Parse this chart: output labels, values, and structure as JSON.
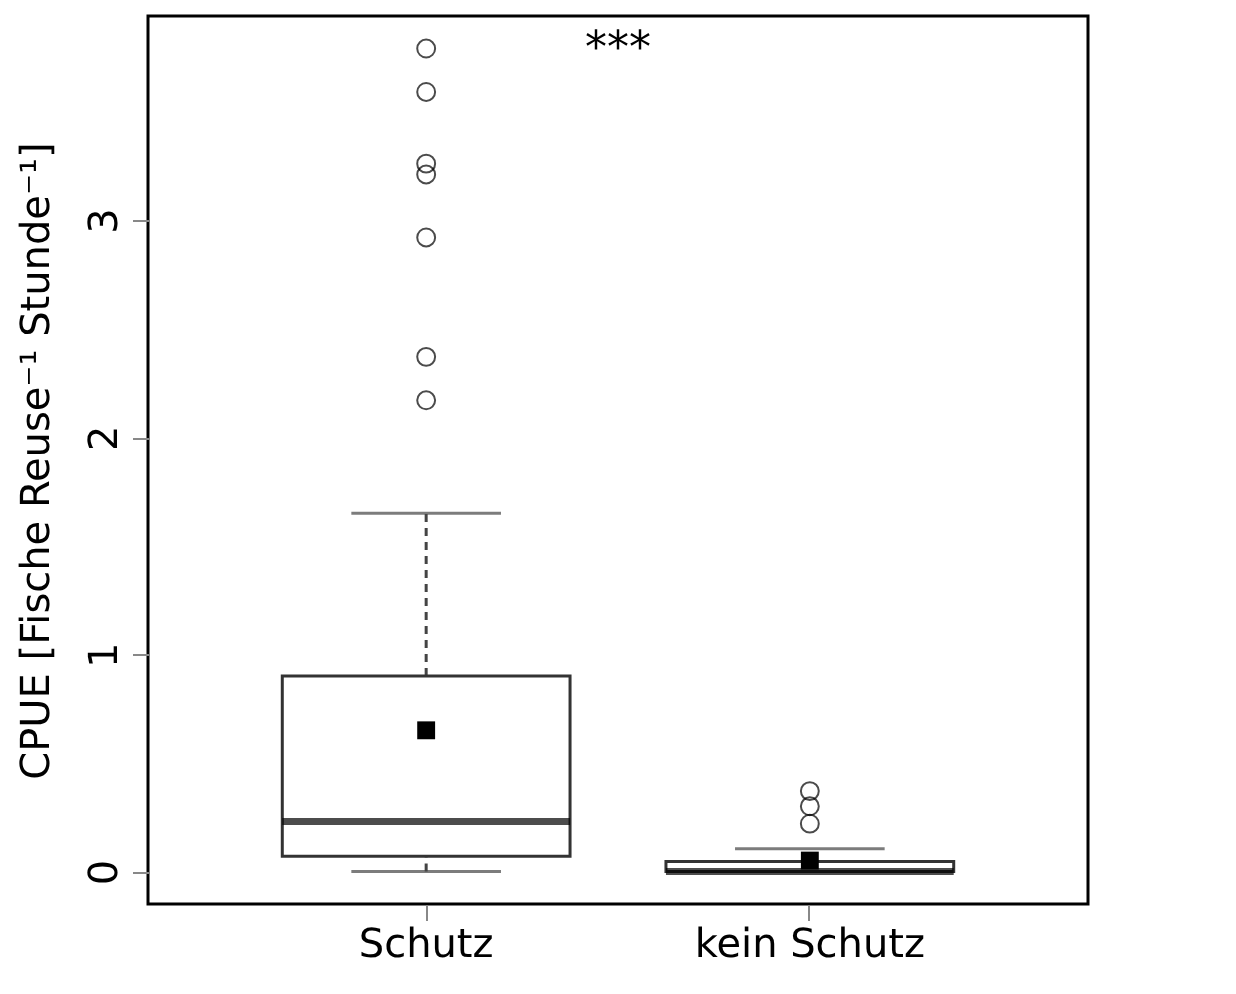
{
  "chart_data": {
    "type": "box",
    "categories": [
      "Schutz",
      "kein Schutz"
    ],
    "ylabel": "CPUE [Fische Reuse⁻¹ Stunde⁻¹]",
    "ylim": [
      -0.15,
      3.94
    ],
    "yticks": [
      0,
      1,
      2,
      3
    ],
    "grid": false,
    "annotations": [
      "***"
    ],
    "boxes": [
      {
        "low": 0,
        "q1": 0.07,
        "median": 0.23,
        "q3": 0.9,
        "high": 1.65,
        "mean": 0.65,
        "outliers": [
          3.79,
          3.59,
          3.26,
          3.21,
          2.92,
          2.37,
          2.17
        ]
      },
      {
        "low": 0,
        "q1": 0,
        "median": 0,
        "q3": 0.046,
        "high": 0.105,
        "mean": 0.05,
        "outliers": [
          0.37,
          0.3,
          0.22
        ]
      }
    ]
  }
}
